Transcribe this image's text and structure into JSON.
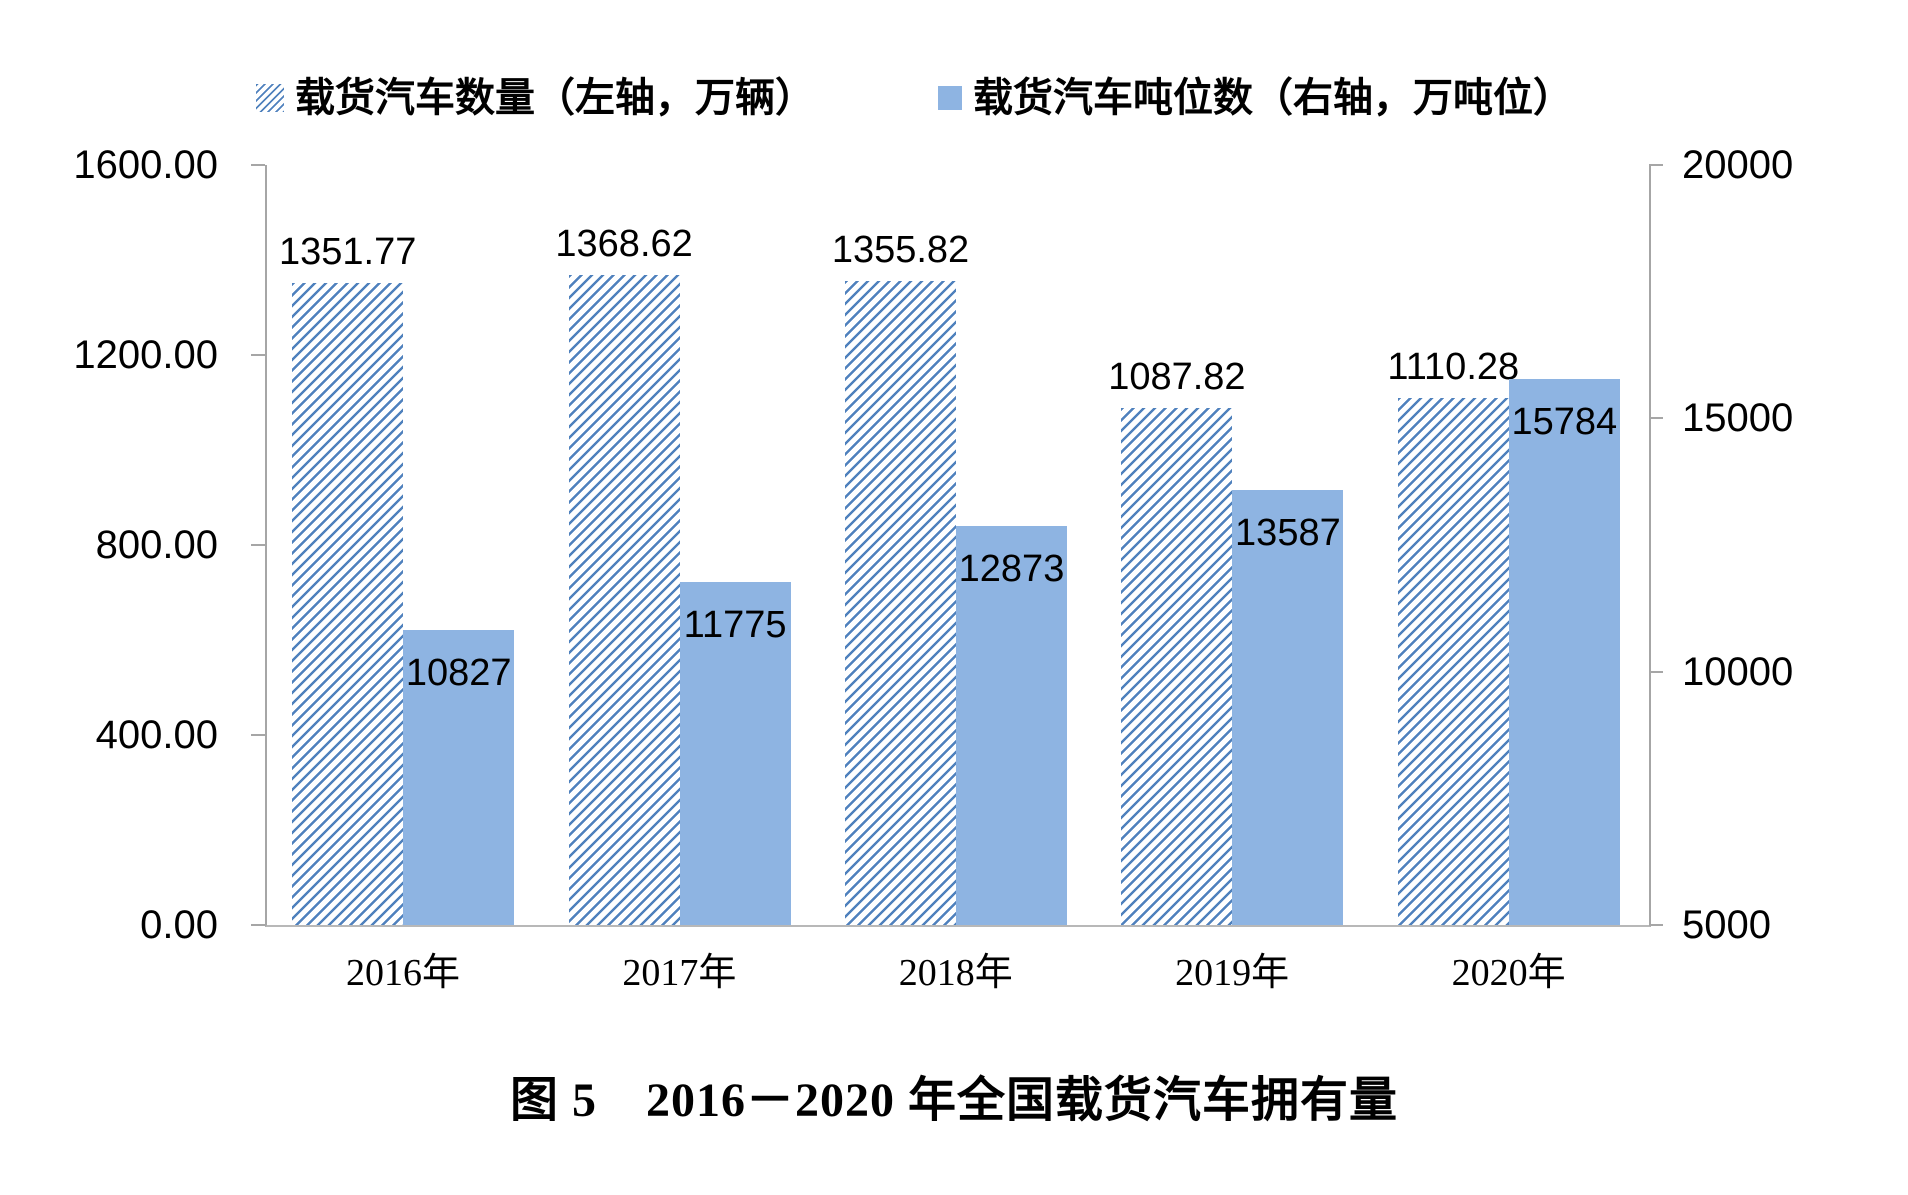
{
  "legend": {
    "items": [
      {
        "label": "载货汽车数量（左轴，万辆）",
        "swatch": "hatched",
        "color": "#4f81bd"
      },
      {
        "label": "载货汽车吨位数（右轴，万吨位）",
        "swatch": "solid",
        "color": "#8eb4e2"
      }
    ]
  },
  "caption": {
    "text": "图 5　2016－2020 年全国载货汽车拥有量"
  },
  "colors": {
    "hatch_blue": "#4f81bd",
    "solid_blue": "#8eb4e2",
    "axis_gray": "#a6a6a6",
    "text": "#000000",
    "background": "#ffffff"
  },
  "chart_data": {
    "type": "bar",
    "title": "图 5　2016－2020 年全国载货汽车拥有量",
    "categories": [
      "2016年",
      "2017年",
      "2018年",
      "2019年",
      "2020年"
    ],
    "series": [
      {
        "name": "载货汽车数量（左轴，万辆）",
        "axis": "left",
        "style": "hatched",
        "values": [
          1351.77,
          1368.62,
          1355.82,
          1087.82,
          1110.28
        ],
        "data_labels": [
          "1351.77",
          "1368.62",
          "1355.82",
          "1087.82",
          "1110.28"
        ]
      },
      {
        "name": "载货汽车吨位数（右轴，万吨位）",
        "axis": "right",
        "style": "solid",
        "values": [
          10827,
          11775,
          12873,
          13587,
          15784
        ],
        "data_labels": [
          "10827",
          "11775",
          "12873",
          "13587",
          "15784"
        ]
      }
    ],
    "axes": {
      "left": {
        "min": 0,
        "max": 1600,
        "step": 400,
        "tick_labels": [
          "0.00",
          "400.00",
          "800.00",
          "1200.00",
          "1600.00"
        ]
      },
      "right": {
        "min": 5000,
        "max": 20000,
        "step": 5000,
        "tick_labels": [
          "5000",
          "10000",
          "15000",
          "20000"
        ]
      }
    },
    "grid": false,
    "legend_position": "top"
  }
}
